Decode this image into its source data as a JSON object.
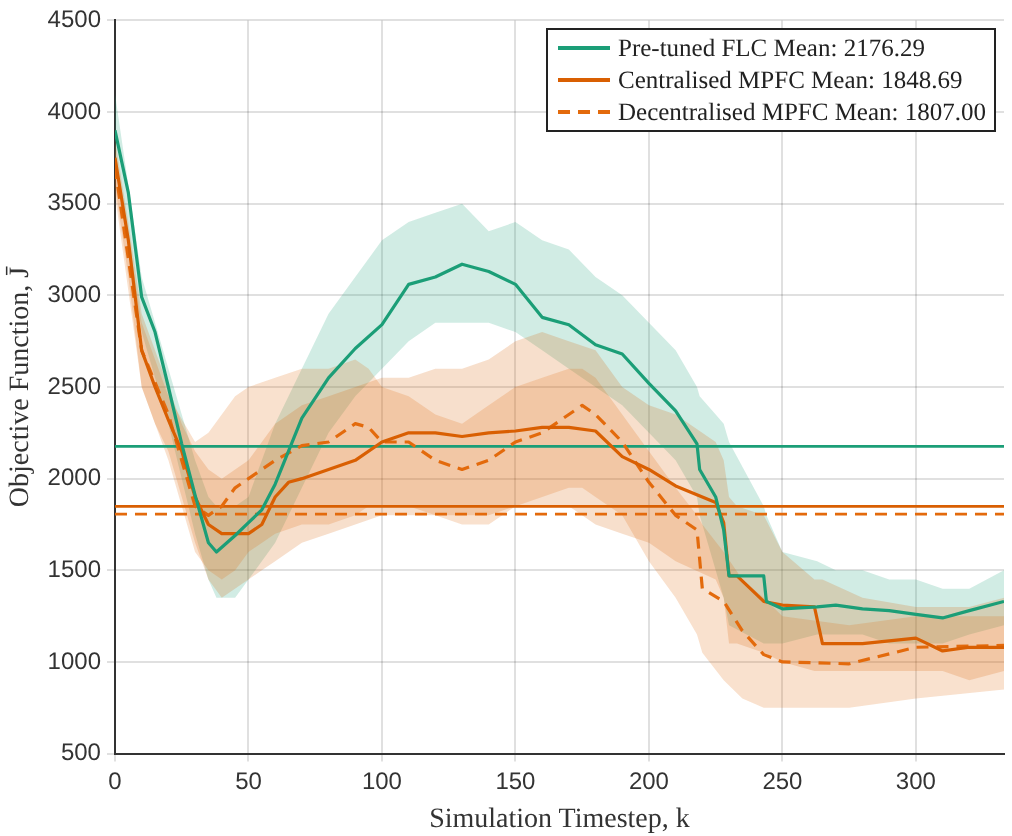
{
  "chart_data": {
    "type": "line",
    "xlabel": "Simulation Timestep, k",
    "ylabel": "Objective Function, J̄",
    "xlim": [
      0,
      333
    ],
    "xticks": [
      0,
      50,
      100,
      150,
      200,
      250,
      300
    ],
    "ylim": [
      500,
      4500
    ],
    "yticks": [
      500,
      1000,
      1500,
      2000,
      2500,
      3000,
      3500,
      4000,
      4500
    ],
    "grid": true,
    "legend": "top right",
    "marker": "none",
    "series": [
      {
        "name": "Pre-tuned FLC Mean: 2176.29",
        "color": "#1b9e77",
        "line_style": "solid",
        "x": [
          0,
          5,
          10,
          15,
          20,
          25,
          30,
          35,
          38,
          45,
          50,
          55,
          60,
          65,
          70,
          80,
          90,
          100,
          110,
          120,
          130,
          140,
          150,
          160,
          170,
          180,
          190,
          200,
          210,
          218,
          219,
          225,
          228,
          230,
          243,
          244,
          250,
          263,
          270,
          280,
          290,
          300,
          310,
          320,
          333
        ],
        "values": [
          3900,
          3560,
          2990,
          2800,
          2500,
          2190,
          1910,
          1650,
          1600,
          1690,
          1760,
          1830,
          1970,
          2150,
          2330,
          2550,
          2710,
          2840,
          3060,
          3100,
          3170,
          3130,
          3060,
          2880,
          2840,
          2730,
          2680,
          2520,
          2370,
          2190,
          2050,
          1900,
          1720,
          1470,
          1470,
          1330,
          1290,
          1300,
          1310,
          1290,
          1280,
          1260,
          1240,
          1280,
          1330
        ],
        "upper": [
          4100,
          3600,
          3100,
          2850,
          2600,
          2350,
          2100,
          1900,
          1850,
          1850,
          1900,
          2100,
          2300,
          2450,
          2600,
          2900,
          3100,
          3300,
          3400,
          3450,
          3500,
          3350,
          3400,
          3300,
          3250,
          3100,
          3000,
          2850,
          2700,
          2500,
          2450,
          2350,
          2300,
          2200,
          1850,
          1800,
          1600,
          1550,
          1500,
          1500,
          1450,
          1450,
          1400,
          1400,
          1500
        ],
        "lower": [
          3700,
          3300,
          2800,
          2550,
          2300,
          2000,
          1700,
          1450,
          1350,
          1350,
          1450,
          1550,
          1650,
          1800,
          1950,
          2250,
          2450,
          2600,
          2750,
          2850,
          2850,
          2850,
          2800,
          2700,
          2600,
          2500,
          2400,
          2250,
          2100,
          1900,
          1800,
          1500,
          1350,
          1200,
          1100,
          1100,
          1100,
          1150,
          1150,
          1150,
          1100,
          1100,
          1100,
          1150,
          1200
        ]
      },
      {
        "name": "Centralised MPFC Mean: 1848.69",
        "color": "#d95f02",
        "line_style": "solid",
        "x": [
          0,
          5,
          10,
          15,
          20,
          25,
          30,
          35,
          40,
          50,
          55,
          60,
          65,
          70,
          80,
          90,
          100,
          110,
          120,
          130,
          140,
          150,
          160,
          170,
          180,
          190,
          200,
          210,
          225,
          228,
          230,
          233,
          243,
          250,
          262,
          265,
          280,
          300,
          310,
          320,
          333
        ],
        "values": [
          3750,
          3300,
          2700,
          2500,
          2320,
          2150,
          1900,
          1750,
          1700,
          1700,
          1750,
          1900,
          1980,
          2000,
          2050,
          2100,
          2200,
          2250,
          2250,
          2230,
          2250,
          2260,
          2280,
          2280,
          2260,
          2120,
          2050,
          1960,
          1870,
          1760,
          1470,
          1470,
          1330,
          1310,
          1300,
          1100,
          1100,
          1130,
          1060,
          1080,
          1080
        ],
        "upper": [
          3850,
          3400,
          2900,
          2700,
          2500,
          2300,
          2150,
          2050,
          2000,
          2100,
          2200,
          2300,
          2350,
          2400,
          2450,
          2500,
          2550,
          2550,
          2600,
          2600,
          2650,
          2750,
          2800,
          2750,
          2700,
          2500,
          2400,
          2350,
          2200,
          2100,
          1900,
          1850,
          1800,
          1600,
          1450,
          1450,
          1350,
          1300,
          1300,
          1300,
          1350
        ],
        "lower": [
          3600,
          3100,
          2500,
          2300,
          2150,
          1900,
          1650,
          1450,
          1350,
          1450,
          1500,
          1550,
          1600,
          1650,
          1700,
          1750,
          1800,
          1800,
          1800,
          1800,
          1800,
          1850,
          1850,
          1850,
          1750,
          1700,
          1650,
          1550,
          1450,
          1350,
          1100,
          1100,
          1050,
          1000,
          950,
          950,
          950,
          950,
          950,
          900,
          950
        ]
      },
      {
        "name": "Decentralised MPFC Mean: 1807.00",
        "color": "#e36a0c",
        "line_style": "dashed",
        "x": [
          0,
          10,
          20,
          30,
          35,
          40,
          45,
          50,
          60,
          70,
          80,
          90,
          95,
          100,
          110,
          120,
          130,
          140,
          150,
          160,
          170,
          175,
          180,
          190,
          200,
          210,
          218,
          220,
          228,
          235,
          243,
          250,
          275,
          300,
          333
        ],
        "values": [
          3700,
          2700,
          2350,
          1850,
          1800,
          1850,
          1950,
          2000,
          2100,
          2180,
          2200,
          2300,
          2280,
          2200,
          2200,
          2100,
          2050,
          2100,
          2200,
          2250,
          2350,
          2400,
          2350,
          2200,
          1980,
          1800,
          1720,
          1400,
          1330,
          1170,
          1040,
          1000,
          990,
          1080,
          1090
        ],
        "upper": [
          3800,
          2850,
          2450,
          2200,
          2250,
          2350,
          2450,
          2500,
          2550,
          2600,
          2600,
          2650,
          2600,
          2500,
          2450,
          2350,
          2300,
          2400,
          2500,
          2550,
          2600,
          2600,
          2550,
          2350,
          2150,
          1950,
          1800,
          1750,
          1600,
          1450,
          1350,
          1250,
          1200,
          1250,
          1250
        ],
        "lower": [
          3550,
          2500,
          2100,
          1600,
          1500,
          1450,
          1500,
          1600,
          1700,
          1750,
          1750,
          1800,
          1850,
          1850,
          1850,
          1800,
          1750,
          1750,
          1850,
          1900,
          1950,
          1950,
          1900,
          1800,
          1550,
          1350,
          1150,
          1050,
          900,
          800,
          750,
          750,
          750,
          800,
          850
        ]
      }
    ],
    "ref_lines": [
      {
        "axis": "y",
        "value": 2176.29,
        "color": "#1b9e77",
        "line_style": "solid"
      },
      {
        "axis": "y",
        "value": 1848.69,
        "color": "#d95f02",
        "line_style": "solid"
      },
      {
        "axis": "y",
        "value": 1807.0,
        "color": "#e36a0c",
        "line_style": "dashed"
      }
    ]
  }
}
